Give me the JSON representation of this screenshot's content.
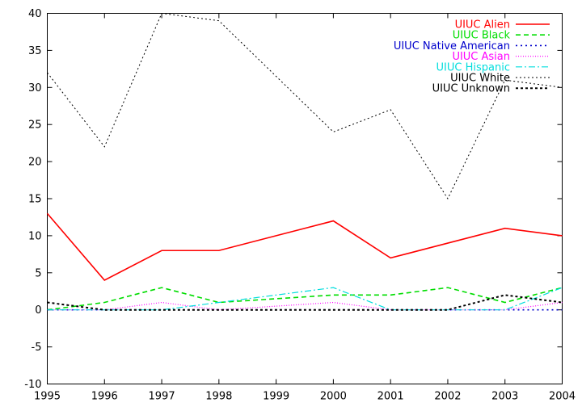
{
  "chart_data": {
    "type": "line",
    "title": "",
    "xlabel": "",
    "ylabel": "",
    "x": [
      1995,
      1996,
      1997,
      1998,
      1999,
      2000,
      2001,
      2002,
      2003,
      2004
    ],
    "xlim": [
      1995,
      2004
    ],
    "ylim": [
      -10,
      40
    ],
    "xticks": [
      "1995",
      "1996",
      "1997",
      "1998",
      "1999",
      "2000",
      "2001",
      "2002",
      "2003",
      "2004"
    ],
    "yticks": [
      "-10",
      "-5",
      "0",
      "5",
      "10",
      "15",
      "20",
      "25",
      "30",
      "35",
      "40"
    ],
    "grid": false,
    "legend_position": "top-right",
    "series": [
      {
        "name": "UIUC Alien",
        "color": "#ff0000",
        "dash": "solid",
        "width": 1.6,
        "values": [
          13,
          4,
          8,
          8,
          10,
          12,
          7,
          9,
          11,
          10
        ]
      },
      {
        "name": "UIUC Black",
        "color": "#00dd00",
        "dash": "dash",
        "width": 1.6,
        "values": [
          0,
          1,
          3,
          1,
          1.5,
          2,
          2,
          3,
          1,
          3
        ]
      },
      {
        "name": "UIUC Native American",
        "color": "#0000cc",
        "dash": "dot",
        "width": 1.6,
        "values": [
          0,
          0,
          0,
          0,
          0,
          0,
          0,
          0,
          0,
          0
        ]
      },
      {
        "name": "UIUC Asian",
        "color": "#ff00ff",
        "dash": "fine-dot",
        "width": 1.2,
        "values": [
          0,
          0,
          1,
          0,
          0.5,
          1,
          0,
          0,
          0,
          1
        ]
      },
      {
        "name": "UIUC Hispanic",
        "color": "#00dddd",
        "dash": "dash-dot",
        "width": 1.2,
        "values": [
          0,
          0,
          0,
          1,
          2,
          3,
          0,
          0,
          0,
          3
        ]
      },
      {
        "name": "UIUC White",
        "color": "#000000",
        "dash": "fine-dash",
        "width": 1.0,
        "values": [
          32,
          22,
          40,
          39,
          31.5,
          24,
          27,
          15,
          31,
          30
        ]
      },
      {
        "name": "UIUC Unknown",
        "color": "#000000",
        "dash": "bold-dot",
        "width": 2.0,
        "values": [
          1,
          0,
          0,
          0,
          0,
          0,
          0,
          0,
          2,
          1
        ]
      }
    ]
  }
}
